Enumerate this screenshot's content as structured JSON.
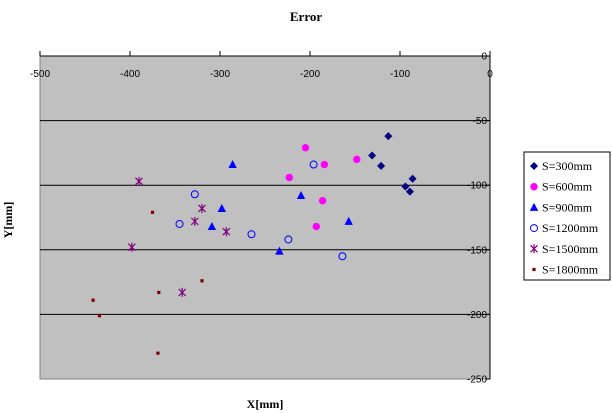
{
  "chart_data": {
    "type": "scatter",
    "title": "Error",
    "xlabel": "X[mm]",
    "ylabel": "Y[mm]",
    "xlim": [
      -500,
      0
    ],
    "ylim": [
      -250,
      0
    ],
    "xticks": [
      "-500",
      "-400",
      "-300",
      "-200",
      "-100",
      "0"
    ],
    "yticks": [
      "0",
      "-50",
      "-100",
      "-150",
      "-200",
      "-250"
    ],
    "x_tick_values": [
      -500,
      -400,
      -300,
      -200,
      -100,
      0
    ],
    "y_tick_values": [
      0,
      -50,
      -100,
      -150,
      -200,
      -250
    ],
    "grid": "horizontal",
    "plot_background": "#c0c0c0",
    "legend_position": "right",
    "series": [
      {
        "name": "S=300mm",
        "marker": "diamond",
        "color": "#000080",
        "points": [
          [
            -113,
            -62
          ],
          [
            -131,
            -77
          ],
          [
            -121,
            -85
          ],
          [
            -86,
            -95
          ],
          [
            -94,
            -101
          ],
          [
            -89,
            -105
          ]
        ]
      },
      {
        "name": "S=600mm",
        "marker": "circle",
        "color": "#ff00ff",
        "points": [
          [
            -205,
            -71
          ],
          [
            -148,
            -80
          ],
          [
            -184,
            -84
          ],
          [
            -223,
            -94
          ],
          [
            -186,
            -112
          ],
          [
            -193,
            -132
          ]
        ]
      },
      {
        "name": "S=900mm",
        "marker": "triangle",
        "color": "#0000ff",
        "points": [
          [
            -286,
            -84
          ],
          [
            -210,
            -108
          ],
          [
            -298,
            -118
          ],
          [
            -157,
            -128
          ],
          [
            -309,
            -132
          ],
          [
            -234,
            -151
          ]
        ]
      },
      {
        "name": "S=1200mm",
        "marker": "open-circle",
        "color": "#0000ff",
        "points": [
          [
            -196,
            -84
          ],
          [
            -328,
            -107
          ],
          [
            -345,
            -130
          ],
          [
            -265,
            -138
          ],
          [
            -224,
            -142
          ],
          [
            -164,
            -155
          ]
        ]
      },
      {
        "name": "S=1500mm",
        "marker": "star",
        "color": "#800080",
        "points": [
          [
            -390,
            -97
          ],
          [
            -320,
            -118
          ],
          [
            -328,
            -128
          ],
          [
            -293,
            -136
          ],
          [
            -398,
            -148
          ],
          [
            -342,
            -183
          ]
        ]
      },
      {
        "name": "S=1800mm",
        "marker": "square",
        "color": "#800000",
        "points": [
          [
            -375,
            -121
          ],
          [
            -320,
            -174
          ],
          [
            -368,
            -183
          ],
          [
            -441,
            -189
          ],
          [
            -434,
            -201
          ],
          [
            -369,
            -230
          ]
        ]
      }
    ]
  }
}
